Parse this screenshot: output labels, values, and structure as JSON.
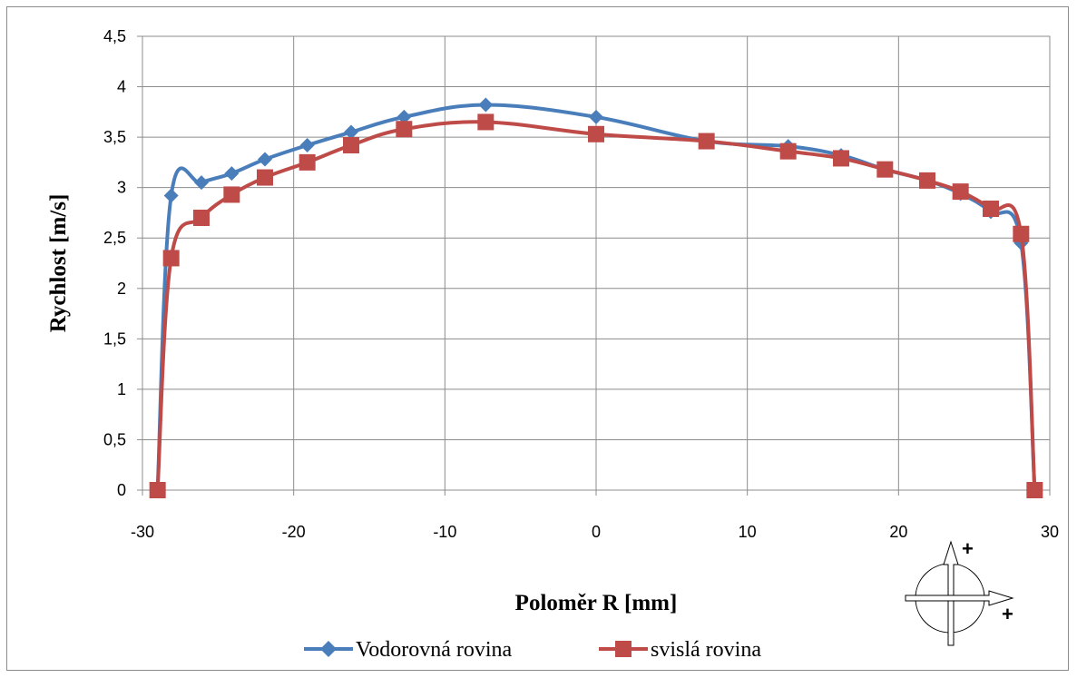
{
  "chart_data": {
    "type": "line",
    "title": "",
    "xlabel": "Poloměr R [mm]",
    "ylabel": "Rychlost [m/s]",
    "xlim": [
      -30,
      30
    ],
    "ylim": [
      0,
      4.5
    ],
    "x_ticks": [
      "-30",
      "-20",
      "-10",
      "0",
      "10",
      "20",
      "30"
    ],
    "y_ticks": [
      "0",
      "0,5",
      "1",
      "1,5",
      "2",
      "2,5",
      "3",
      "3,5",
      "4",
      "4,5"
    ],
    "grid": true,
    "legend_position": "bottom",
    "series": [
      {
        "name": "Vodorovná rovina",
        "color": "#4a7ebb",
        "marker": "diamond",
        "points": [
          [
            -29,
            0
          ],
          [
            -28.1,
            2.92
          ],
          [
            -26.1,
            3.05
          ],
          [
            -24.1,
            3.14
          ],
          [
            -21.9,
            3.28
          ],
          [
            -19.1,
            3.42
          ],
          [
            -16.2,
            3.55
          ],
          [
            -12.7,
            3.7
          ],
          [
            -7.3,
            3.82
          ],
          [
            0,
            3.7
          ],
          [
            7.3,
            3.46
          ],
          [
            12.7,
            3.41
          ],
          [
            16.2,
            3.32
          ],
          [
            19.1,
            3.18
          ],
          [
            21.9,
            3.07
          ],
          [
            24.1,
            2.94
          ],
          [
            26.1,
            2.76
          ],
          [
            28.1,
            2.45
          ],
          [
            29,
            0
          ]
        ]
      },
      {
        "name": "svislá rovina",
        "color": "#be4b48",
        "marker": "square",
        "points": [
          [
            -29,
            0
          ],
          [
            -28.1,
            2.3
          ],
          [
            -26.1,
            2.7
          ],
          [
            -24.1,
            2.93
          ],
          [
            -21.9,
            3.1
          ],
          [
            -19.1,
            3.25
          ],
          [
            -16.2,
            3.42
          ],
          [
            -12.7,
            3.58
          ],
          [
            -7.3,
            3.65
          ],
          [
            0,
            3.53
          ],
          [
            7.3,
            3.46
          ],
          [
            12.7,
            3.36
          ],
          [
            16.2,
            3.29
          ],
          [
            19.1,
            3.18
          ],
          [
            21.9,
            3.07
          ],
          [
            24.1,
            2.96
          ],
          [
            26.1,
            2.79
          ],
          [
            28.1,
            2.54
          ],
          [
            29,
            0
          ]
        ]
      }
    ]
  },
  "orientation_symbol": {
    "up_sign": "+",
    "right_sign": "+"
  }
}
